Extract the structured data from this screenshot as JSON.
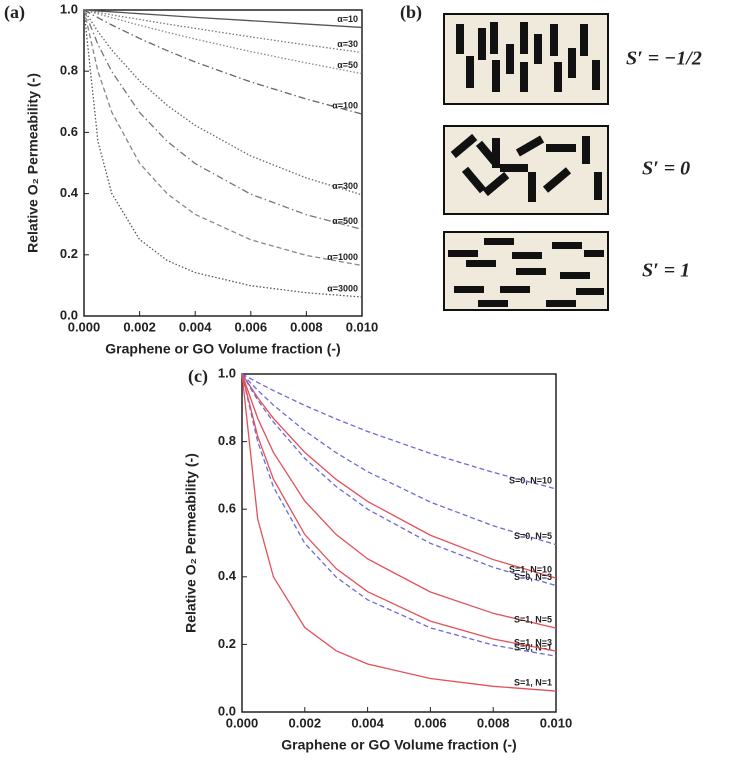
{
  "chart_data": [
    {
      "type": "line",
      "panel": "(a)",
      "xlabel": "Graphene or GO Volume fraction (-)",
      "ylabel": "Relative O₂ Permeability (-)",
      "x": [
        0,
        0.0005,
        0.001,
        0.002,
        0.003,
        0.004,
        0.006,
        0.008,
        0.01
      ],
      "xlim": [
        0,
        0.01
      ],
      "ylim": [
        0,
        1
      ],
      "xticks": [
        {
          "value": 0,
          "label": "0.000"
        },
        {
          "value": 0.002,
          "label": "0.002"
        },
        {
          "value": 0.004,
          "label": "0.004"
        },
        {
          "value": 0.006,
          "label": "0.006"
        },
        {
          "value": 0.008,
          "label": "0.008"
        },
        {
          "value": 0.01,
          "label": "0.010"
        }
      ],
      "yticks": [
        {
          "value": 0,
          "label": "0.0"
        },
        0.2,
        0.4,
        0.6,
        0.8,
        {
          "value": 1,
          "label": "1.0"
        }
      ],
      "series": [
        {
          "name": "α=10",
          "color": "#555555",
          "style": "solid",
          "values": [
            1,
            0.997,
            0.994,
            0.988,
            0.982,
            0.976,
            0.965,
            0.954,
            0.943
          ]
        },
        {
          "name": "α=30",
          "color": "#777777",
          "style": "dotted",
          "values": [
            1,
            0.992,
            0.984,
            0.969,
            0.954,
            0.94,
            0.912,
            0.886,
            0.861
          ]
        },
        {
          "name": "α=50",
          "color": "#888888",
          "style": "dotted",
          "values": [
            1,
            0.987,
            0.975,
            0.95,
            0.927,
            0.905,
            0.864,
            0.827,
            0.792
          ]
        },
        {
          "name": "α=100",
          "color": "#666666",
          "style": "dashdot",
          "values": [
            1,
            0.975,
            0.951,
            0.907,
            0.867,
            0.83,
            0.765,
            0.709,
            0.66
          ]
        },
        {
          "name": "α=300",
          "color": "#666666",
          "style": "dotted",
          "values": [
            1,
            0.93,
            0.869,
            0.768,
            0.688,
            0.623,
            0.523,
            0.451,
            0.396
          ]
        },
        {
          "name": "α=500",
          "color": "#777777",
          "style": "dashdot",
          "values": [
            1,
            0.888,
            0.799,
            0.665,
            0.57,
            0.498,
            0.398,
            0.331,
            0.283
          ]
        },
        {
          "name": "α=1000",
          "color": "#888888",
          "style": "dashed",
          "values": [
            1,
            0.8,
            0.666,
            0.499,
            0.399,
            0.332,
            0.249,
            0.198,
            0.165
          ]
        },
        {
          "name": "α=3000",
          "color": "#555555",
          "style": "dotted",
          "values": [
            1,
            0.571,
            0.4,
            0.25,
            0.181,
            0.142,
            0.099,
            0.076,
            0.062
          ]
        }
      ]
    },
    {
      "type": "line",
      "panel": "(c)",
      "xlabel": "Graphene or GO Volume fraction (-)",
      "ylabel": "Relative O₂ Permeability (-)",
      "x": [
        0,
        0.0005,
        0.001,
        0.002,
        0.003,
        0.004,
        0.006,
        0.008,
        0.01
      ],
      "xlim": [
        0,
        0.01
      ],
      "ylim": [
        0,
        1
      ],
      "xticks": [
        {
          "value": 0,
          "label": "0.000"
        },
        {
          "value": 0.002,
          "label": "0.002"
        },
        {
          "value": 0.004,
          "label": "0.004"
        },
        {
          "value": 0.006,
          "label": "0.006"
        },
        {
          "value": 0.008,
          "label": "0.008"
        },
        {
          "value": 0.01,
          "label": "0.010"
        }
      ],
      "yticks": [
        {
          "value": 0,
          "label": "0.0"
        },
        0.2,
        0.4,
        0.6,
        0.8,
        {
          "value": 1,
          "label": "1.0"
        }
      ],
      "series": [
        {
          "name": "S=0, N=10",
          "color": "#6b6bd8",
          "style": "dashed",
          "values": [
            1,
            0.975,
            0.951,
            0.907,
            0.867,
            0.83,
            0.765,
            0.709,
            0.66
          ]
        },
        {
          "name": "S=0, N=5",
          "color": "#6b6bd8",
          "style": "dashed",
          "values": [
            1,
            0.952,
            0.908,
            0.832,
            0.767,
            0.711,
            0.621,
            0.551,
            0.495
          ]
        },
        {
          "name": "S=1, N=10",
          "color": "#e2505a",
          "style": "solid",
          "values": [
            1,
            0.93,
            0.869,
            0.768,
            0.688,
            0.623,
            0.523,
            0.451,
            0.396
          ]
        },
        {
          "name": "S=0, N=3",
          "color": "#6b6bd8",
          "style": "dashed",
          "values": [
            1,
            0.923,
            0.858,
            0.75,
            0.667,
            0.6,
            0.499,
            0.428,
            0.374
          ]
        },
        {
          "name": "S=1, N=5",
          "color": "#e2505a",
          "style": "solid",
          "values": [
            1,
            0.869,
            0.768,
            0.624,
            0.525,
            0.453,
            0.355,
            0.292,
            0.248
          ]
        },
        {
          "name": "S=0, N=1",
          "color": "#6b6bd8",
          "style": "dashed",
          "values": [
            1,
            0.8,
            0.666,
            0.499,
            0.399,
            0.332,
            0.249,
            0.198,
            0.165
          ]
        },
        {
          "name": "S=1, N=3",
          "color": "#e2505a",
          "style": "solid",
          "values": [
            1,
            0.816,
            0.689,
            0.525,
            0.424,
            0.356,
            0.269,
            0.216,
            0.18
          ]
        },
        {
          "name": "S=1, N=1",
          "color": "#e2505a",
          "style": "solid",
          "values": [
            1,
            0.571,
            0.4,
            0.25,
            0.181,
            0.142,
            0.099,
            0.076,
            0.062
          ]
        }
      ]
    }
  ],
  "diagram": {
    "panel": "(b)",
    "labels": [
      "S′ = −1/2",
      "S′ = 0",
      "S′ = 1"
    ]
  }
}
